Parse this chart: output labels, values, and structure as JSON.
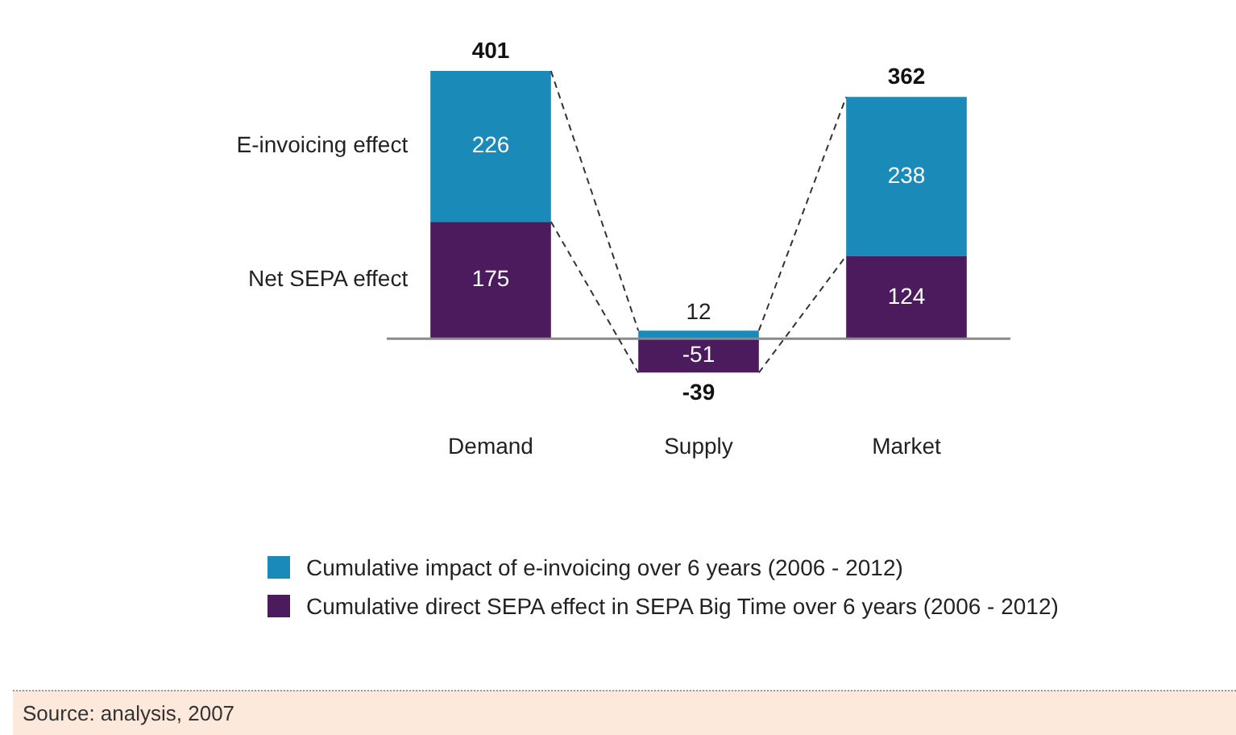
{
  "chart_data": {
    "type": "bar",
    "stacked": true,
    "categories": [
      "Demand",
      "Supply",
      "Market"
    ],
    "series": [
      {
        "name": "Cumulative direct SEPA effect in SEPA Big Time over 6 years (2006 - 2012)",
        "color": "#4b1b5e",
        "values": [
          175,
          -51,
          124
        ]
      },
      {
        "name": "Cumulative impact of e-invoicing over 6 years (2006 - 2012)",
        "color": "#1a8ab8",
        "values": [
          226,
          12,
          238
        ]
      }
    ],
    "data_labels": true,
    "totals": [
      "401",
      "-39",
      "362"
    ],
    "legend": "bottom",
    "annotations": [
      "Net SEPA effect",
      "E-invoicing effect",
      "Source: analysis, 2007"
    ]
  }
}
